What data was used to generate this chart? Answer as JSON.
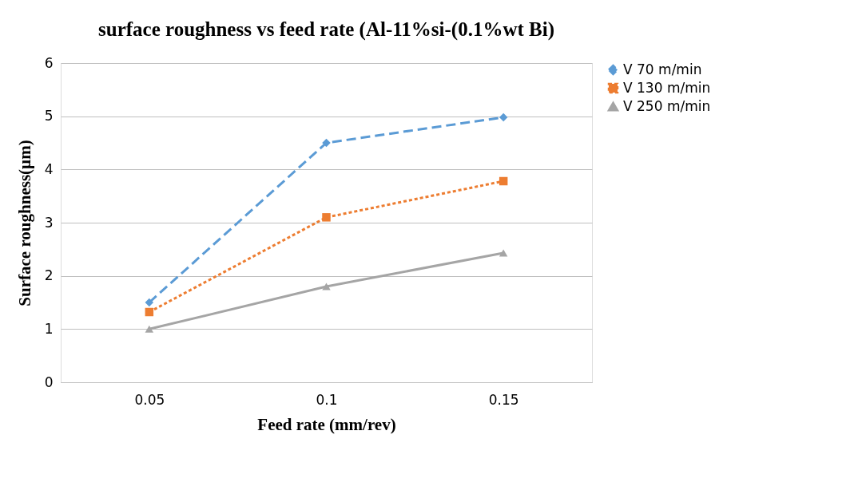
{
  "chart_data": {
    "type": "line",
    "title": "surface roughness vs feed rate (Al-11%si-(0.1%wt Bi)",
    "xlabel": "Feed rate (mm/rev)",
    "ylabel": "Surface roughness(µm)",
    "categories": [
      "0.05",
      "0.1",
      "0.15"
    ],
    "series": [
      {
        "name": "V 70 m/min",
        "color": "#5b9bd5",
        "values": [
          1.5,
          4.5,
          4.98
        ],
        "marker": "diamond",
        "line_style": "dashed"
      },
      {
        "name": "V 130 m/min",
        "color": "#ed7d31",
        "values": [
          1.32,
          3.1,
          3.78
        ],
        "marker": "square",
        "line_style": "dotted"
      },
      {
        "name": "V 250 m/min",
        "color": "#a5a5a5",
        "values": [
          1.0,
          1.8,
          2.43
        ],
        "marker": "triangle",
        "line_style": "solid"
      }
    ],
    "ylim": [
      0,
      6
    ],
    "yticks": [
      0,
      1,
      2,
      3,
      4,
      5,
      6
    ],
    "grid": "y",
    "legend": "right"
  }
}
